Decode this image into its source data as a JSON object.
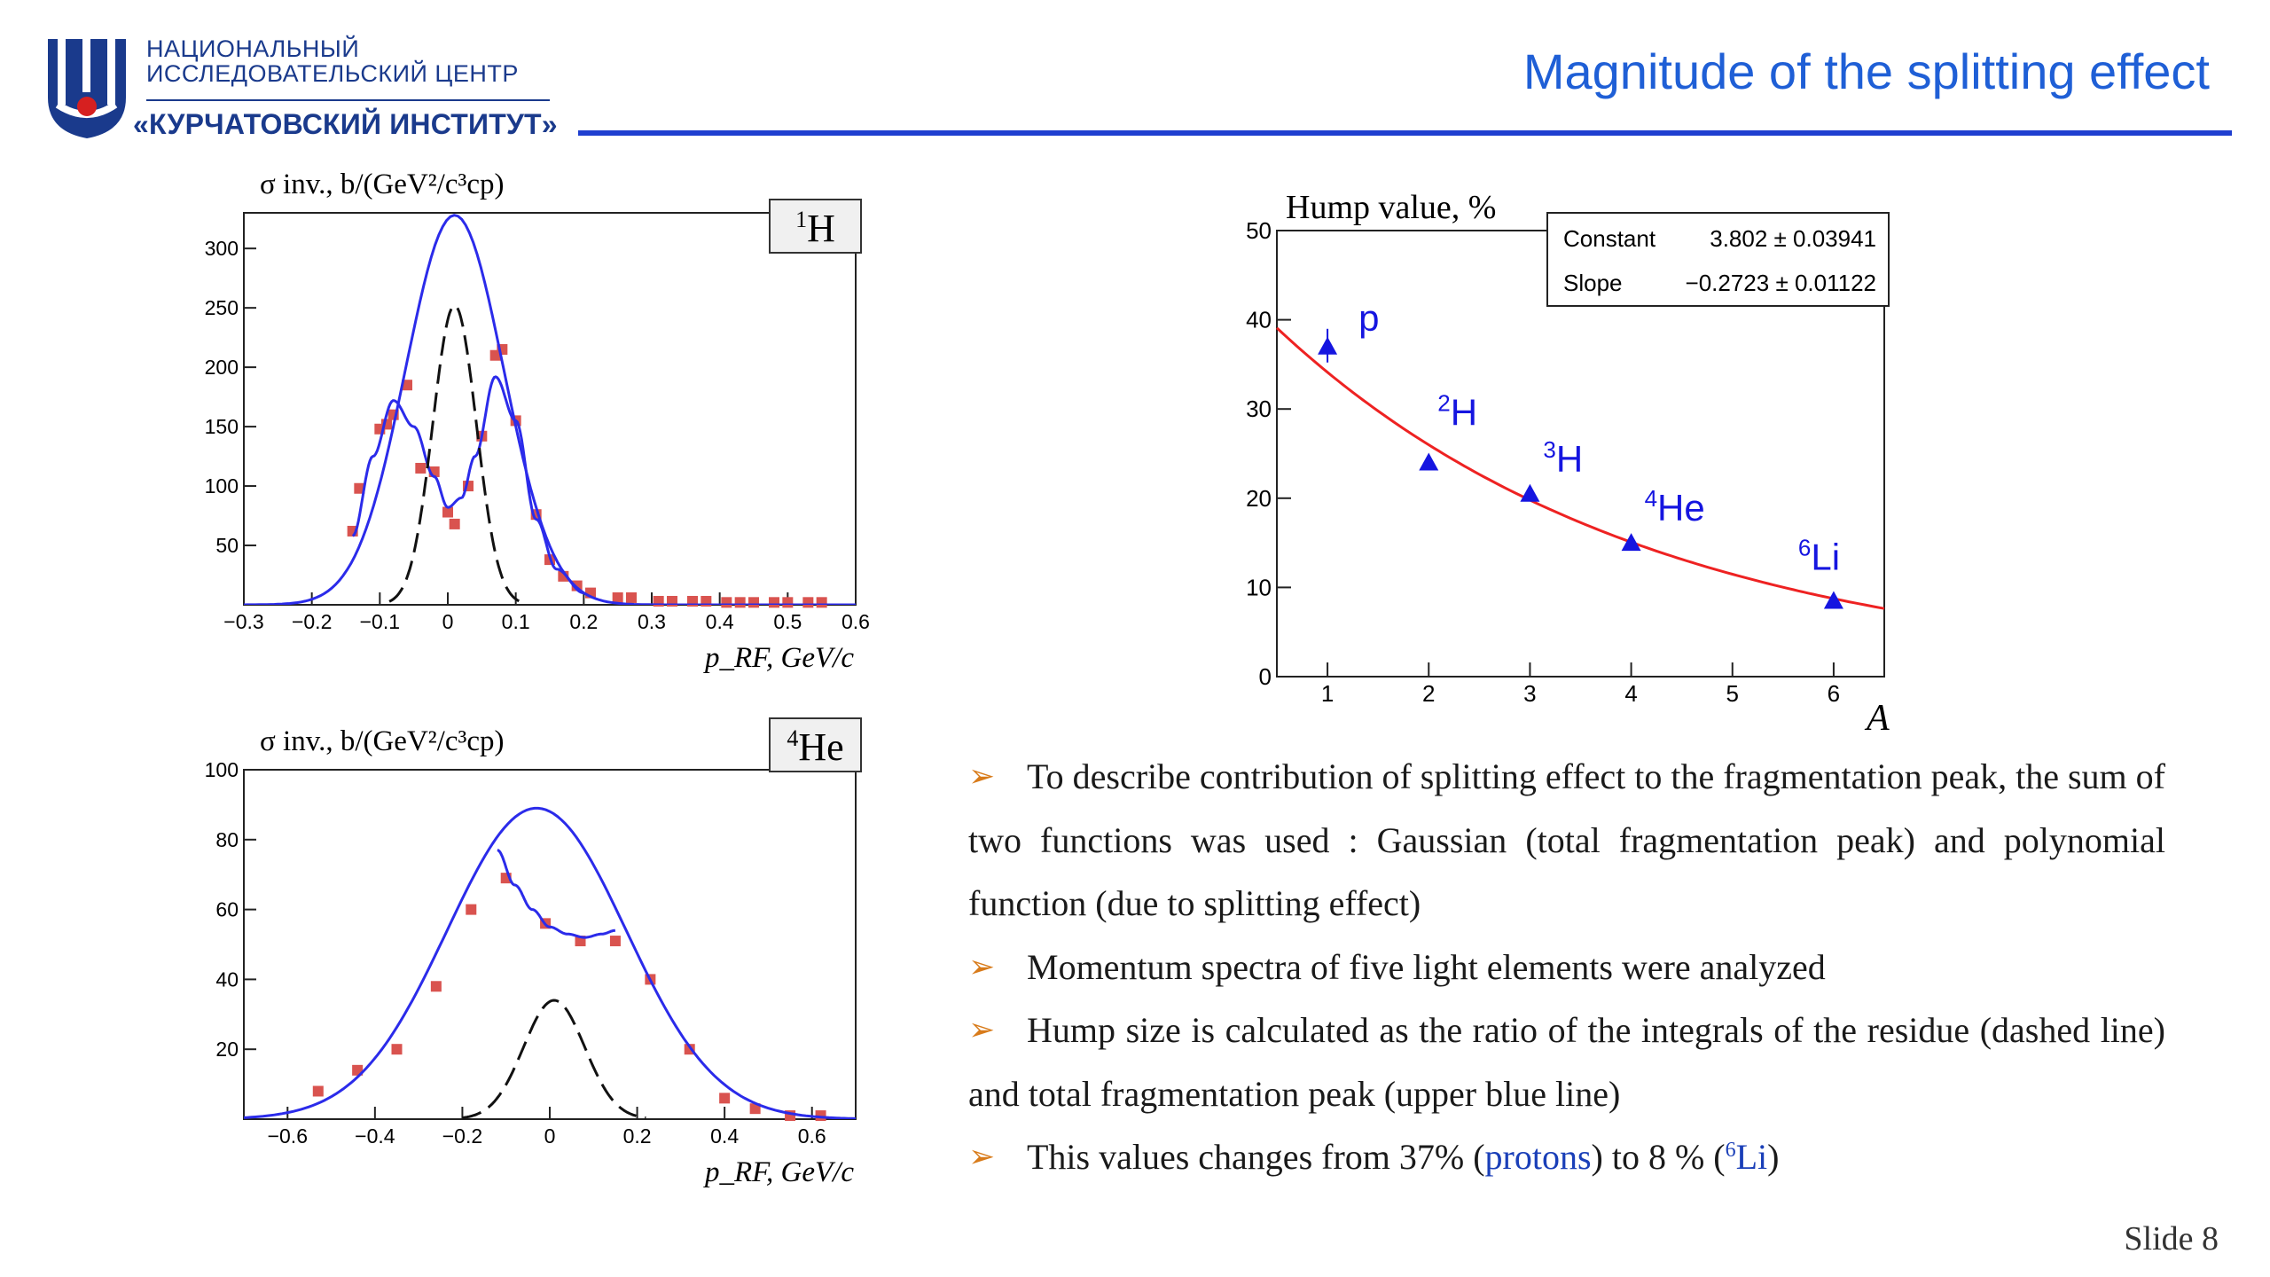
{
  "header": {
    "logo_line1": "НАЦИОНАЛЬНЫЙ",
    "logo_line2": "ИССЛЕДОВАТЕЛЬСКИЙ ЦЕНТР",
    "logo_line3": "«КУРЧАТОВСКИЙ ИНСТИТУТ»",
    "title": "Magnitude of the splitting effect"
  },
  "colors": {
    "title": "#1f5fd6",
    "rule": "#1f3fd0",
    "fit_blue": "#2b2bea",
    "fit_red": "#ee2222",
    "marker_red": "#d9534f",
    "arrow": "#d87b1a",
    "link": "#1a3fb8"
  },
  "chart_data": [
    {
      "type": "scatter",
      "panel_label": "1H",
      "ylabel": "σ inv., b/(GeV²/c³cp)",
      "xlabel": "p_RF, GeV/c",
      "xlim": [
        -0.3,
        0.6
      ],
      "ylim": [
        0,
        330
      ],
      "x_ticks": [
        "−0.3",
        "−0.2",
        "−0.1",
        "0",
        "0.1",
        "0.2",
        "0.3",
        "0.4",
        "0.5",
        "0.6"
      ],
      "y_ticks": [
        "50",
        "100",
        "150",
        "200",
        "250",
        "300"
      ],
      "series": [
        {
          "style": "markers",
          "x": [
            -0.14,
            -0.13,
            -0.1,
            -0.09,
            -0.08,
            -0.06,
            -0.04,
            -0.02,
            0.0,
            0.01,
            0.03,
            0.05,
            0.07,
            0.08,
            0.1,
            0.13,
            0.15,
            0.17,
            0.19,
            0.21,
            0.25,
            0.27,
            0.31,
            0.33,
            0.36,
            0.38,
            0.41,
            0.43,
            0.45,
            0.48,
            0.5,
            0.53,
            0.55
          ],
          "y": [
            62,
            98,
            148,
            152,
            160,
            185,
            115,
            112,
            78,
            68,
            100,
            142,
            210,
            215,
            155,
            76,
            38,
            24,
            16,
            10,
            6,
            6,
            3,
            3,
            3,
            3,
            2,
            2,
            2,
            2,
            2,
            2,
            2
          ]
        },
        {
          "style": "blue-total",
          "model": "gaussian",
          "amplitude": 328,
          "center": 0.01,
          "sigma": 0.072
        },
        {
          "style": "blue-lower",
          "model": "double-hump",
          "x": [
            -0.14,
            -0.11,
            -0.08,
            -0.05,
            -0.02,
            0.0,
            0.02,
            0.04,
            0.07,
            0.1,
            0.13,
            0.16,
            0.2
          ],
          "y": [
            58,
            125,
            172,
            150,
            108,
            82,
            90,
            125,
            192,
            155,
            72,
            30,
            10
          ]
        },
        {
          "style": "dashed-residue",
          "model": "gaussian",
          "amplitude": 252,
          "center": 0.01,
          "sigma": 0.032
        }
      ]
    },
    {
      "type": "scatter",
      "panel_label": "4He",
      "ylabel": "σ inv., b/(GeV²/c³cp)",
      "xlabel": "p_RF, GeV/c",
      "xlim": [
        -0.7,
        0.7
      ],
      "ylim": [
        0,
        100
      ],
      "x_ticks": [
        "−0.6",
        "−0.4",
        "−0.2",
        "0",
        "0.2",
        "0.4",
        "0.6"
      ],
      "y_ticks": [
        "20",
        "40",
        "60",
        "80",
        "100"
      ],
      "series": [
        {
          "style": "markers",
          "x": [
            -0.53,
            -0.44,
            -0.35,
            -0.26,
            -0.18,
            -0.1,
            -0.01,
            0.07,
            0.15,
            0.23,
            0.32,
            0.4,
            0.47,
            0.55,
            0.62
          ],
          "y": [
            8,
            14,
            20,
            38,
            60,
            69,
            56,
            51,
            51,
            40,
            20,
            6,
            3,
            1,
            1
          ]
        },
        {
          "style": "blue-total",
          "model": "gaussian",
          "amplitude": 89,
          "center": -0.03,
          "sigma": 0.205
        },
        {
          "style": "blue-lower",
          "model": "dip",
          "x": [
            -0.12,
            -0.08,
            -0.04,
            0.0,
            0.04,
            0.08,
            0.12,
            0.15
          ],
          "y": [
            77,
            67,
            60,
            55,
            53,
            52,
            53,
            54
          ]
        },
        {
          "style": "dashed-residue",
          "model": "gaussian",
          "amplitude": 34,
          "center": 0.01,
          "sigma": 0.07
        }
      ]
    },
    {
      "type": "scatter",
      "ylabel": "Hump value, %",
      "xlabel": "A",
      "xlim": [
        0.5,
        6.5
      ],
      "ylim": [
        0,
        50
      ],
      "x_ticks": [
        "1",
        "2",
        "3",
        "4",
        "5",
        "6"
      ],
      "y_ticks": [
        "0",
        "10",
        "20",
        "30",
        "40",
        "50"
      ],
      "points": [
        {
          "label": "p",
          "mass": "",
          "symbol": "p",
          "x": 1,
          "y": 37
        },
        {
          "label": "2H",
          "mass": "2",
          "symbol": "H",
          "x": 2,
          "y": 24
        },
        {
          "label": "3H",
          "mass": "3",
          "symbol": "H",
          "x": 3,
          "y": 20.5
        },
        {
          "label": "4He",
          "mass": "4",
          "symbol": "He",
          "x": 4,
          "y": 15
        },
        {
          "label": "6Li",
          "mass": "6",
          "symbol": "Li",
          "x": 6,
          "y": 8.5
        }
      ],
      "fit": {
        "model": "exponential",
        "constant": 3.802,
        "slope": -0.2723
      },
      "stats_box": [
        {
          "name": "Constant",
          "value": "3.802 ± 0.03941"
        },
        {
          "name": "Slope",
          "value": "−0.2723 ± 0.01122"
        }
      ]
    }
  ],
  "bullets": [
    "To describe contribution of splitting effect to the fragmentation peak, the sum of two functions was used : Gaussian (total fragmentation peak) and polynomial function (due to splitting effect)",
    "Momentum spectra of five light elements were analyzed",
    "Hump size is calculated as the ratio of the integrals of the residue (dashed line) and total fragmentation peak (upper blue line)"
  ],
  "bullet4": {
    "pre": "This values changes from 37% (",
    "link1": "protons",
    "mid": ") to 8 % (",
    "sup": "6",
    "link2": "Li",
    "post": ")"
  },
  "footer": {
    "slide_number": "Slide 8"
  }
}
